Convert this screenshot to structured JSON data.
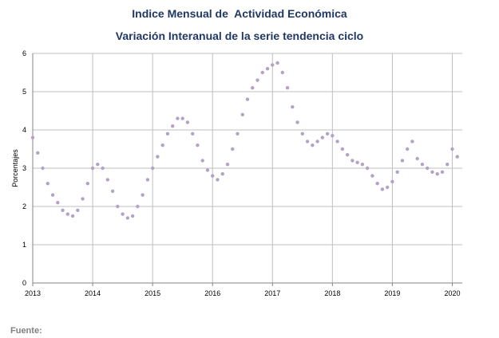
{
  "chart_data": {
    "type": "scatter",
    "title": "Indice Mensual de  Actividad Económica",
    "subtitle": "Variación Interanual de la serie tendencia ciclo",
    "ylabel": "Porcentajes",
    "xlabel": "",
    "ylim": [
      0,
      6
    ],
    "yticks": [
      "0",
      "1",
      "2",
      "3",
      "4",
      "5",
      "6"
    ],
    "xlim": [
      2013,
      2020.1667
    ],
    "xticks": [
      "2013",
      "2014",
      "2015",
      "2016",
      "2017",
      "2018",
      "2019",
      "2020"
    ],
    "grid": true,
    "legend": "none",
    "marker_color": "#b3a2c7",
    "series": [
      {
        "x": [
          2013.0,
          2013.0833,
          2013.1667,
          2013.25,
          2013.3333,
          2013.4167,
          2013.5,
          2013.5833,
          2013.6667,
          2013.75,
          2013.8333,
          2013.9167,
          2014.0,
          2014.0833,
          2014.1667,
          2014.25,
          2014.3333,
          2014.4167,
          2014.5,
          2014.5833,
          2014.6667,
          2014.75,
          2014.8333,
          2014.9167,
          2015.0,
          2015.0833,
          2015.1667,
          2015.25,
          2015.3333,
          2015.4167,
          2015.5,
          2015.5833,
          2015.6667,
          2015.75,
          2015.8333,
          2015.9167,
          2016.0,
          2016.0833,
          2016.1667,
          2016.25,
          2016.3333,
          2016.4167,
          2016.5,
          2016.5833,
          2016.6667,
          2016.75,
          2016.8333,
          2016.9167,
          2017.0,
          2017.0833,
          2017.1667,
          2017.25,
          2017.3333,
          2017.4167,
          2017.5,
          2017.5833,
          2017.6667,
          2017.75,
          2017.8333,
          2017.9167,
          2018.0,
          2018.0833,
          2018.1667,
          2018.25,
          2018.3333,
          2018.4167,
          2018.5,
          2018.5833,
          2018.6667,
          2018.75,
          2018.8333,
          2018.9167,
          2019.0,
          2019.0833,
          2019.1667,
          2019.25,
          2019.3333,
          2019.4167,
          2019.5,
          2019.5833,
          2019.6667,
          2019.75,
          2019.8333,
          2019.9167,
          2020.0,
          2020.0833
        ],
        "y": [
          3.8,
          3.4,
          3.0,
          2.6,
          2.3,
          2.1,
          1.9,
          1.8,
          1.75,
          1.9,
          2.2,
          2.6,
          3.0,
          3.1,
          3.0,
          2.7,
          2.4,
          2.0,
          1.8,
          1.7,
          1.75,
          2.0,
          2.3,
          2.7,
          3.0,
          3.3,
          3.6,
          3.9,
          4.1,
          4.3,
          4.3,
          4.2,
          3.9,
          3.6,
          3.2,
          2.95,
          2.8,
          2.7,
          2.85,
          3.1,
          3.5,
          3.9,
          4.4,
          4.8,
          5.1,
          5.3,
          5.5,
          5.6,
          5.7,
          5.75,
          5.5,
          5.1,
          4.6,
          4.2,
          3.9,
          3.7,
          3.6,
          3.7,
          3.8,
          3.9,
          3.85,
          3.7,
          3.5,
          3.35,
          3.2,
          3.15,
          3.1,
          3.0,
          2.8,
          2.6,
          2.45,
          2.5,
          2.65,
          2.9,
          3.2,
          3.5,
          3.7,
          3.25,
          3.1,
          3.0,
          2.9,
          2.85,
          2.9,
          3.1,
          3.5,
          3.3
        ]
      }
    ]
  },
  "source_label": "Fuente:"
}
